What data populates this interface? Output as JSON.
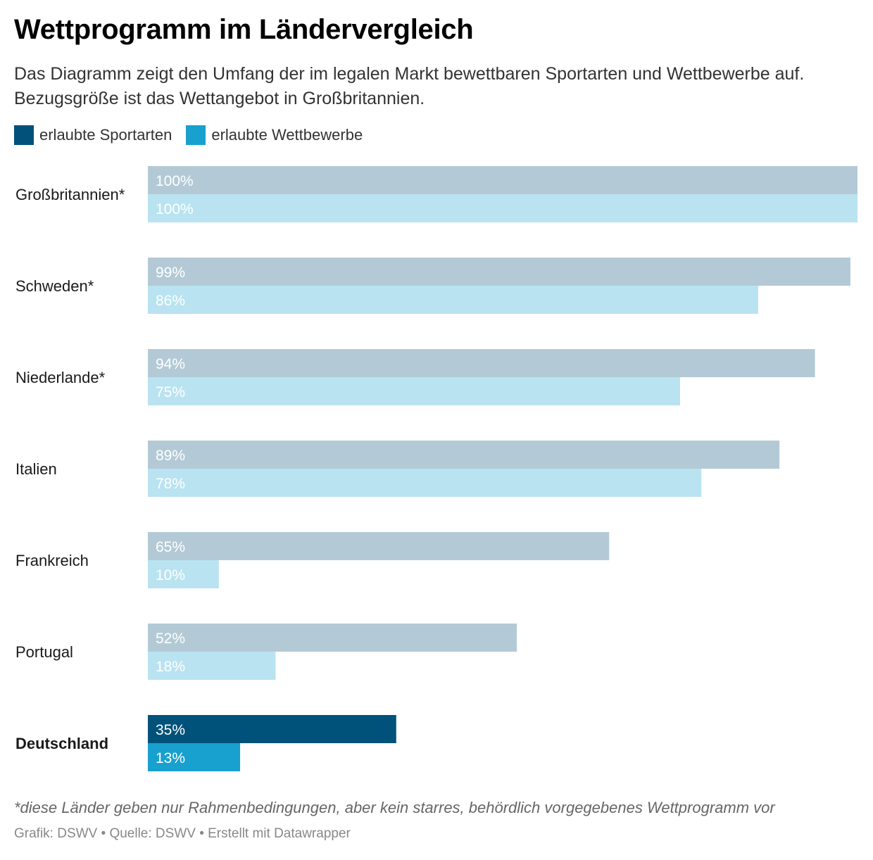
{
  "title": "Wettprogramm im Ländervergleich",
  "subtitle": "Das Diagramm zeigt den Umfang der im legalen Markt bewettbaren Sportarten und Wettbewerbe auf. Bezugsgröße ist das Wettangebot in Großbritannien.",
  "footnote": "*diese Länder geben nur Rahmenbedingungen, aber kein starres, behördlich vorgegebenes Wettprogramm vor",
  "credit": "Grafik: DSWV • Quelle: DSWV • Erstellt mit Datawrapper",
  "colors": {
    "sport_muted": "#b3cad6",
    "competition_muted": "#b9e3f1",
    "sport_highlight": "#00527a",
    "competition_highlight": "#18a0cf"
  },
  "chart_data": {
    "type": "bar",
    "orientation": "horizontal",
    "categories": [
      "Großbritannien*",
      "Schweden*",
      "Niederlande*",
      "Italien",
      "Frankreich",
      "Portugal",
      "Deutschland"
    ],
    "highlight": "Deutschland",
    "series": [
      {
        "name": "erlaubte Sportarten",
        "values": [
          100,
          99,
          94,
          89,
          65,
          52,
          35
        ]
      },
      {
        "name": "erlaubte Wettbewerbe",
        "values": [
          100,
          86,
          75,
          78,
          10,
          18,
          13
        ]
      }
    ],
    "value_suffix": "%",
    "xlim": [
      0,
      100
    ],
    "grid": false,
    "legend": "top-left"
  }
}
